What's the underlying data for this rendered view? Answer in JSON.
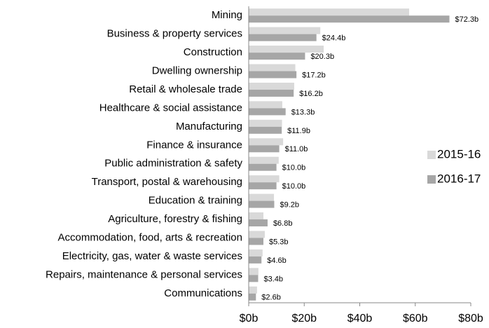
{
  "chart_data": {
    "type": "hbar",
    "categories": [
      "Mining",
      "Business & property services",
      "Construction",
      "Dwelling ownership",
      "Retail & wholesale trade",
      "Healthcare & social assistance",
      "Manufacturing",
      "Finance & insurance",
      "Public administration & safety",
      "Transport, postal & warehousing",
      "Education & training",
      "Agriculture, forestry & fishing",
      "Accommodation, food, arts & recreation",
      "Electricity, gas, water & waste services",
      "Repairs, maintenance & personal services",
      "Communications"
    ],
    "series": [
      {
        "name": "2015-16",
        "color": "#d9d9d9",
        "values": [
          57.8,
          25.8,
          27,
          16.8,
          16.4,
          12.1,
          12,
          12.4,
          10.8,
          11,
          9.1,
          5.3,
          5.8,
          5,
          3.5,
          3
        ]
      },
      {
        "name": "2016-17",
        "color": "#a6a6a6",
        "values": [
          72.3,
          24.4,
          20.3,
          17.2,
          16.2,
          13.3,
          11.9,
          11.0,
          10.0,
          10.0,
          9.2,
          6.8,
          5.3,
          4.6,
          3.4,
          2.6
        ],
        "value_labels": [
          "$72.3b",
          "$24.4b",
          "$20.3b",
          "$17.2b",
          "$16.2b",
          "$13.3b",
          "$11.9b",
          "$11.0b",
          "$10.0b",
          "$10.0b",
          "$9.2b",
          "$6.8b",
          "$5.3b",
          "$4.6b",
          "$3.4b",
          "$2.6b"
        ]
      }
    ],
    "xlim": [
      0,
      80
    ],
    "xticks": [
      {
        "value": 0,
        "label": "$0b"
      },
      {
        "value": 20,
        "label": "$20b"
      },
      {
        "value": 40,
        "label": "$40b"
      },
      {
        "value": 60,
        "label": "$60b"
      },
      {
        "value": 80,
        "label": "$80b"
      }
    ],
    "legend": "right"
  }
}
